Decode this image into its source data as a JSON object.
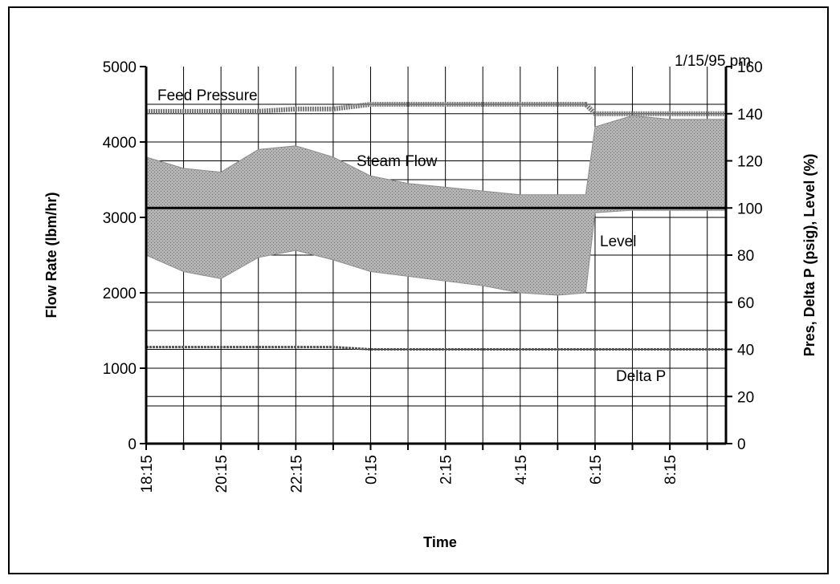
{
  "chart_data": {
    "type": "line",
    "date_label": "1/15/95 pm",
    "xlabel": "Time",
    "ylabel_left": "Flow Rate (lbm/hr)",
    "ylabel_right": "Pres, Delta P (psig), Level (%)",
    "x_tick_labels": [
      "18:15",
      "20:15",
      "22:15",
      "0:15",
      "2:15",
      "4:15",
      "6:15",
      "8:15"
    ],
    "y_left_ticks": [
      "0",
      "1000",
      "2000",
      "3000",
      "4000",
      "5000"
    ],
    "y_right_ticks": [
      "0",
      "20",
      "40",
      "60",
      "80",
      "100",
      "120",
      "140",
      "160"
    ],
    "ylim_left": [
      0,
      5000
    ],
    "ylim_right": [
      0,
      160
    ],
    "grid": true,
    "annotations": {
      "feed_pressure": "Feed Pressure",
      "steam_flow": "Steam Flow",
      "level": "Level",
      "delta_p": "Delta P"
    },
    "series": [
      {
        "name": "Feed Pressure",
        "axis": "right",
        "color": "#777777",
        "x": [
          "18:15",
          "19:15",
          "20:15",
          "21:15",
          "22:15",
          "23:15",
          "0:15",
          "1:15",
          "2:15",
          "3:15",
          "4:15",
          "5:15",
          "6:00",
          "6:15",
          "7:15",
          "8:15",
          "9:15",
          "9:45"
        ],
        "values": [
          141,
          141,
          141,
          141,
          142,
          142,
          144,
          144,
          144,
          144,
          144,
          144,
          144,
          140,
          140,
          140,
          140,
          140
        ]
      },
      {
        "name": "Steam Flow",
        "axis": "left",
        "color": "#8c8c8c",
        "fill_to": 3100,
        "x": [
          "18:15",
          "19:15",
          "20:15",
          "21:15",
          "22:15",
          "23:15",
          "0:15",
          "1:15",
          "2:15",
          "3:15",
          "4:15",
          "5:15",
          "6:00",
          "6:15",
          "7:15",
          "8:15",
          "9:15",
          "9:45"
        ],
        "values": [
          3800,
          3650,
          3600,
          3900,
          3950,
          3800,
          3550,
          3450,
          3400,
          3350,
          3300,
          3300,
          3300,
          4200,
          4350,
          4300,
          4300,
          4300
        ]
      },
      {
        "name": "Level",
        "axis": "right",
        "color": "#8c8c8c",
        "fill_to": 100,
        "x": [
          "18:15",
          "19:15",
          "20:15",
          "21:15",
          "22:15",
          "23:15",
          "0:15",
          "1:15",
          "2:15",
          "3:15",
          "4:15",
          "5:15",
          "6:00",
          "6:15",
          "7:15",
          "8:15",
          "9:15",
          "9:45"
        ],
        "values": [
          80,
          73,
          70,
          79,
          82,
          78,
          73,
          71,
          69,
          67,
          64,
          63,
          64,
          98,
          99,
          99,
          99,
          99
        ]
      },
      {
        "name": "Delta P",
        "axis": "right",
        "color": "#555555",
        "x": [
          "18:15",
          "19:15",
          "20:15",
          "21:15",
          "22:15",
          "23:15",
          "0:15",
          "1:15",
          "2:15",
          "3:15",
          "4:15",
          "5:15",
          "6:00",
          "6:15",
          "7:15",
          "8:15",
          "9:15",
          "9:45"
        ],
        "values": [
          41,
          41,
          41,
          41,
          41,
          41,
          40,
          40,
          40,
          40,
          40,
          40,
          40,
          40,
          40,
          40,
          40,
          40
        ]
      }
    ]
  }
}
